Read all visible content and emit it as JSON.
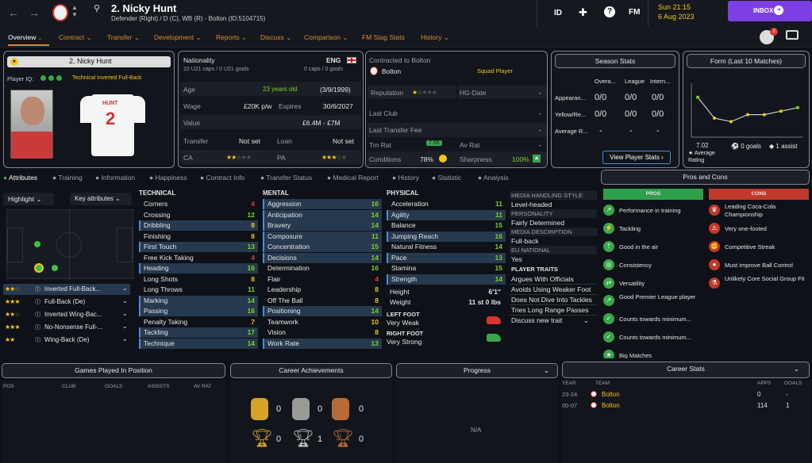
{
  "player": {
    "name": "2. Nicky Hunt",
    "subtitle": "Defender (Right) / D (C), WB (R) - Bolton (ID:5104715)",
    "card_name": "2. Nicky Hunt",
    "iq_label": "Player IQ:",
    "role": "Technical Inverted Full-Back",
    "shirt_name": "HUNT",
    "shirt_num": "2"
  },
  "topbar": {
    "id_label": "ID",
    "fm_label": "FM",
    "time": "Sun 21:15",
    "date": "6 Aug 2023",
    "inbox": "INBOX",
    "badge": "2"
  },
  "nav": [
    "Overview",
    "Contract",
    "Transfer",
    "Development",
    "Reports",
    "Discuss",
    "Comparison",
    "FM Stag Stats",
    "History"
  ],
  "info": {
    "nationality_label": "Nationality",
    "nationality": "ENG",
    "caps": "10 U21 caps / 0 U21 goals",
    "caps2": "0 caps / 0 goals",
    "age_label": "Age",
    "age": "23 years old",
    "dob": "(3/9/1999)",
    "wage_label": "Wage",
    "wage": "£20K p/w",
    "expires_label": "Expires",
    "expires": "30/6/2027",
    "value_label": "Value",
    "value": "£6.4M - £7M",
    "transfer_label": "Transfer",
    "transfer": "Not set",
    "loan_label": "Loan",
    "loan": "Not set",
    "ca_label": "CA",
    "pa_label": "PA"
  },
  "contract": {
    "label": "Contracted to Bolton",
    "club": "Bolton",
    "status": "Squad Player",
    "rep_label": "Reputation",
    "hg_label": "HG-Date",
    "hg": "-",
    "last_club_label": "Last Club",
    "last_club": "-",
    "fee_label": "Last Transfer Fee",
    "fee": "-",
    "trn_label": "Trn Rat",
    "trn": "7.55",
    "av_label": "Av Rat",
    "av": "-",
    "cond_label": "Conditions",
    "cond": "78%",
    "sharp_label": "Sharpness",
    "sharp": "100%"
  },
  "season": {
    "title": "Season Stats",
    "cols": [
      "Overa...",
      "League",
      "Intern..."
    ],
    "rows": [
      {
        "l": "Appearan...",
        "a": "0/0",
        "b": "0/0",
        "c": "0/0"
      },
      {
        "l": "Yellow/Re...",
        "a": "0/0",
        "b": "0/0",
        "c": "0/0"
      },
      {
        "l": "Average R...",
        "a": "-",
        "b": "-",
        "c": "-"
      }
    ],
    "btn": "View Player Stats"
  },
  "form": {
    "title": "Form (Last 10 Matches)",
    "rating": "7.02",
    "rating_lbl": "Average Rating",
    "goals": "0 goals",
    "assists": "1 assist",
    "points": [
      7.6,
      7.0,
      6.9,
      7.1,
      7.1,
      7.2,
      7.3
    ],
    "colors": [
      "#7ed321",
      "#f5c518",
      "#f5c518",
      "#f5c518",
      "#f5c518",
      "#f5c518",
      "#7ed321"
    ]
  },
  "subtabs": [
    "Attributes",
    "Training",
    "Information",
    "Happiness",
    "Contract Info",
    "Transfer Status",
    "Medical Report",
    "History",
    "Statistic",
    "Analysis"
  ],
  "controls": {
    "highlight": "Highlight",
    "keyattr": "Key attributes"
  },
  "roles": [
    "Inverted Full-Back...",
    "Full-Back (De)",
    "Inverted Wing-Bac...",
    "No-Nonsense Full-...",
    "Wing-Back (De)"
  ],
  "technical": {
    "title": "TECHNICAL",
    "rows": [
      {
        "n": "Corners",
        "v": "4",
        "c": "r",
        "h": 0
      },
      {
        "n": "Crossing",
        "v": "12",
        "c": "g",
        "h": 0
      },
      {
        "n": "Dribbling",
        "v": "8",
        "c": "y",
        "h": 1
      },
      {
        "n": "Finishing",
        "v": "8",
        "c": "y",
        "h": 0
      },
      {
        "n": "First Touch",
        "v": "13",
        "c": "g",
        "h": 1
      },
      {
        "n": "Free Kick Taking",
        "v": "4",
        "c": "r",
        "h": 0
      },
      {
        "n": "Heading",
        "v": "16",
        "c": "g",
        "h": 1
      },
      {
        "n": "Long Shots",
        "v": "8",
        "c": "y",
        "h": 0
      },
      {
        "n": "Long Throws",
        "v": "11",
        "c": "g",
        "h": 0
      },
      {
        "n": "Marking",
        "v": "14",
        "c": "g",
        "h": 1
      },
      {
        "n": "Passing",
        "v": "16",
        "c": "g",
        "h": 1
      },
      {
        "n": "Penalty Taking",
        "v": "7",
        "c": "y",
        "h": 0
      },
      {
        "n": "Tackling",
        "v": "17",
        "c": "g",
        "h": 1
      },
      {
        "n": "Technique",
        "v": "14",
        "c": "g",
        "h": 1
      }
    ]
  },
  "mental": {
    "title": "MENTAL",
    "rows": [
      {
        "n": "Aggression",
        "v": "16",
        "c": "g",
        "h": 1
      },
      {
        "n": "Anticipation",
        "v": "14",
        "c": "g",
        "h": 1
      },
      {
        "n": "Bravery",
        "v": "14",
        "c": "g",
        "h": 1
      },
      {
        "n": "Composure",
        "v": "11",
        "c": "g",
        "h": 1
      },
      {
        "n": "Concentration",
        "v": "15",
        "c": "g",
        "h": 1
      },
      {
        "n": "Decisions",
        "v": "14",
        "c": "g",
        "h": 1
      },
      {
        "n": "Determination",
        "v": "16",
        "c": "g",
        "h": 0
      },
      {
        "n": "Flair",
        "v": "4",
        "c": "r",
        "h": 0
      },
      {
        "n": "Leadership",
        "v": "8",
        "c": "y",
        "h": 0
      },
      {
        "n": "Off The Ball",
        "v": "8",
        "c": "y",
        "h": 0
      },
      {
        "n": "Positioning",
        "v": "14",
        "c": "g",
        "h": 1
      },
      {
        "n": "Teamwork",
        "v": "10",
        "c": "y",
        "h": 0
      },
      {
        "n": "Vision",
        "v": "8",
        "c": "y",
        "h": 0
      },
      {
        "n": "Work Rate",
        "v": "13",
        "c": "g",
        "h": 1
      }
    ]
  },
  "physical": {
    "title": "PHYSICAL",
    "rows": [
      {
        "n": "Acceleration",
        "v": "11",
        "c": "g",
        "h": 0
      },
      {
        "n": "Agility",
        "v": "11",
        "c": "g",
        "h": 1
      },
      {
        "n": "Balance",
        "v": "15",
        "c": "g",
        "h": 0
      },
      {
        "n": "Jumping Reach",
        "v": "16",
        "c": "g",
        "h": 1
      },
      {
        "n": "Natural Fitness",
        "v": "14",
        "c": "g",
        "h": 0
      },
      {
        "n": "Pace",
        "v": "13",
        "c": "g",
        "h": 1
      },
      {
        "n": "Stamina",
        "v": "15",
        "c": "g",
        "h": 0
      },
      {
        "n": "Strength",
        "v": "14",
        "c": "g",
        "h": 1
      }
    ],
    "height_label": "Height",
    "height": "6'1\"",
    "weight_label": "Weight",
    "weight": "11 st 0 lbs",
    "lf_label": "LEFT FOOT",
    "lf": "Very Weak",
    "rf_label": "RIGHT FOOT",
    "rf": "Very Strong"
  },
  "media": {
    "mh_label": "MEDIA HANDLING STYLE",
    "mh": "Level-headed",
    "pers_label": "PERSONALITY",
    "pers": "Fairly Determined",
    "desc_label": "MEDIA DESCRIPTION",
    "desc": "Full-back",
    "eu_label": "EU NATIONAL",
    "eu": "Yes",
    "traits_label": "PLAYER TRAITS",
    "traits": [
      "Argues With Officials",
      "Avoids Using Weaker Foot",
      "Does Not Dive Into Tackles",
      "Tries Long Range Passes",
      "Discuss new trait"
    ]
  },
  "proscons": {
    "title": "Pros and Cons",
    "pros_label": "PROS",
    "cons_label": "CONS",
    "pros": [
      "Performance in training",
      "Tackling",
      "Good in the air",
      "Consistency",
      "Versatility",
      "Good Premier League player",
      "Counts towards minimum...",
      "Counts towards minimum...",
      "Big Matches"
    ],
    "cons": [
      "Leading Coca-Cola Championship",
      "Very one-footed",
      "Competitive Streak",
      "Must improve Ball Control",
      "Unlikely Core Social Group Fit"
    ]
  },
  "bottom": {
    "games_title": "Games Played In Position",
    "games_cols": [
      "POS",
      "CLUB",
      "GOALS",
      "ASSISTS",
      "AV RAT"
    ],
    "ach_title": "Career Achievements",
    "ach_top": [
      "0",
      "0",
      "0"
    ],
    "ach_bot": [
      "0",
      "1",
      "0"
    ],
    "progress_title": "Progress",
    "progress_val": "N/A",
    "career_title": "Career Stats",
    "career_cols": [
      "YEAR",
      "TEAM",
      "APPS",
      "GOALS"
    ],
    "career_rows": [
      {
        "y": "23-24",
        "t": "Bolton",
        "a": "0",
        "g": "-"
      },
      {
        "y": "00-07",
        "t": "Bolton",
        "a": "114",
        "g": "1"
      }
    ]
  }
}
